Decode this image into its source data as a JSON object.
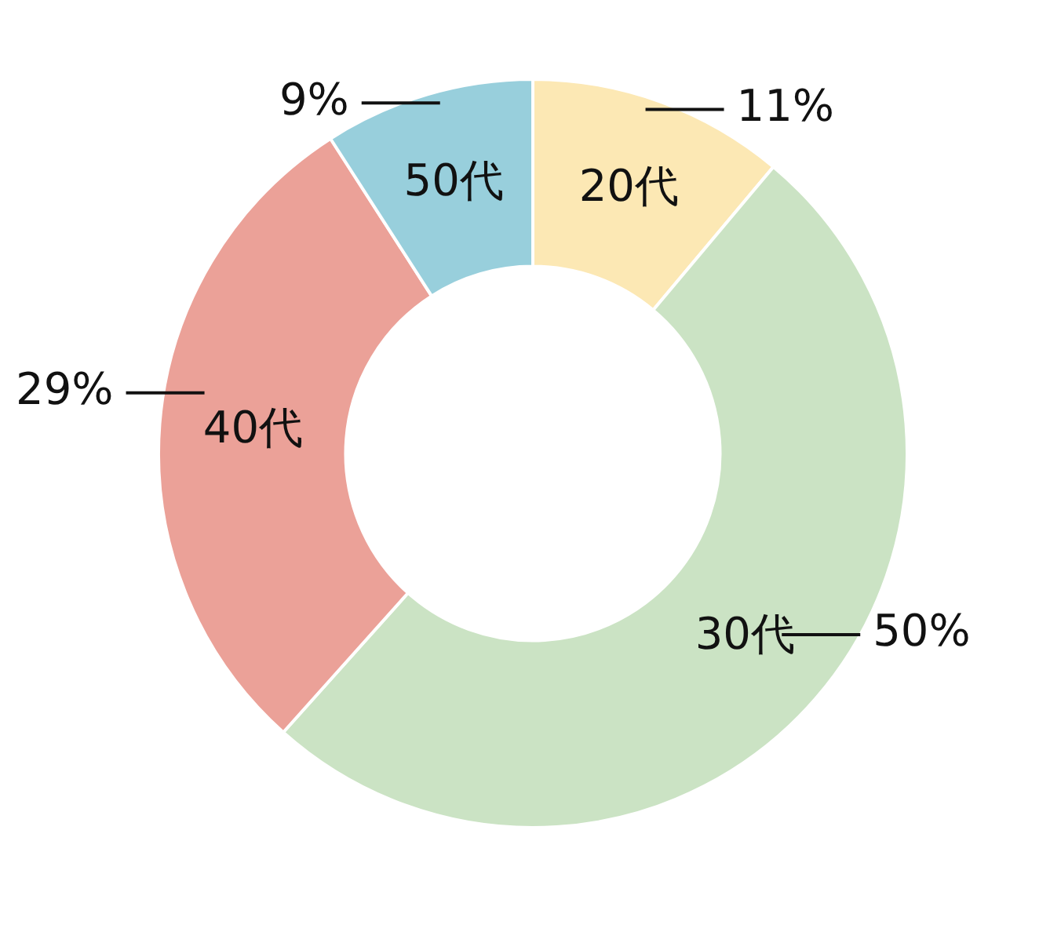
{
  "chart_data": {
    "type": "donut",
    "categories": [
      "20代",
      "30代",
      "40代",
      "50代"
    ],
    "values": [
      11,
      50,
      29,
      9
    ],
    "colors": [
      "#fce8b4",
      "#cbe3c4",
      "#eba198",
      "#98cfdc"
    ],
    "value_labels": [
      "11%",
      "50%",
      "29%",
      "9%"
    ],
    "legend": false
  }
}
